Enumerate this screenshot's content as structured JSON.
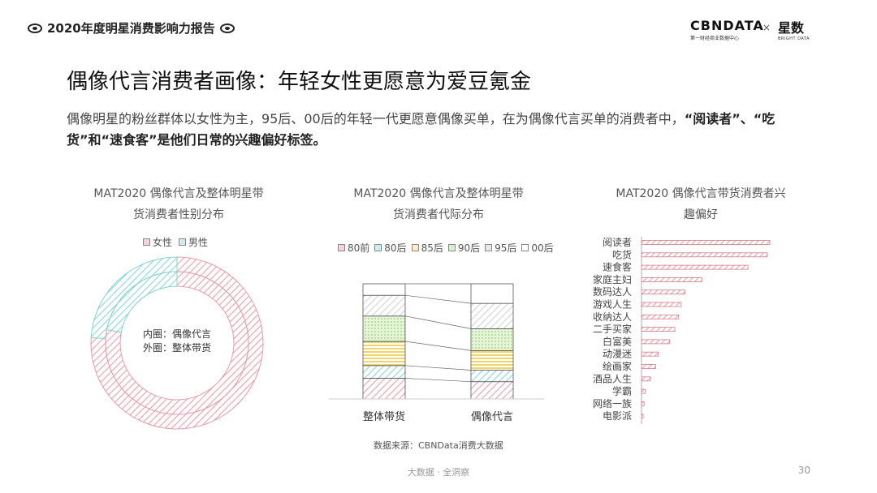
{
  "header": {
    "title": "2020年度明星消费影响力报告"
  },
  "logo": {
    "brand": "CBNDATA",
    "brand_sub": "第一财经商业数据中心",
    "times": "×",
    "partner": "星数",
    "partner_sub": "BRIGHT DATA"
  },
  "title": "偶像代言消费者画像：年轻女性更愿意为爱豆氪金",
  "subtitle": {
    "text": "偶像明星的粉丝群体以女性为主，95后、00后的年轻一代更愿意偶像买单，在为偶像代言买单的消费者中，",
    "bold": "“阅读者”、“吃货”和“速食客”是他们日常的兴趣偏好标签。"
  },
  "colors": {
    "female": "#e89aa5",
    "male": "#7fd3d3",
    "c80前": "#e89aa5",
    "c80后": "#7fd3d3",
    "c85后": "#f2d36b",
    "c90后": "#a8d98a",
    "c95后": "#c8c8c8",
    "c00后": "#ffffff",
    "bar": "#e89aa5"
  },
  "chart_data": [
    {
      "type": "pie",
      "title_line1": "MAT2020 偶像代言及整体明星带",
      "title_line2": "货消费者性别分布",
      "legend": [
        "女性",
        "男性"
      ],
      "center_line1": "内圈：偶像代言",
      "center_line2": "外圈：整体带货",
      "inner": [
        {
          "label": "女性",
          "value": 78
        },
        {
          "label": "男性",
          "value": 22
        }
      ],
      "outer": [
        {
          "label": "女性",
          "value": 76
        },
        {
          "label": "男性",
          "value": 24
        }
      ]
    },
    {
      "type": "bar",
      "stacked": true,
      "title_line1": "MAT2020 偶像代言及整体明星带",
      "title_line2": "货消费者代际分布",
      "categories": [
        "整体带货",
        "偶像代言"
      ],
      "series": [
        {
          "name": "80前",
          "values": [
            18,
            15
          ]
        },
        {
          "name": "80后",
          "values": [
            11,
            10
          ]
        },
        {
          "name": "85后",
          "values": [
            21,
            17
          ]
        },
        {
          "name": "90后",
          "values": [
            22,
            19
          ]
        },
        {
          "name": "95后",
          "values": [
            18,
            22
          ]
        },
        {
          "name": "00后",
          "values": [
            10,
            17
          ]
        }
      ]
    },
    {
      "type": "bar",
      "orientation": "horizontal",
      "title_line1": "MAT2020 偶像代言带货消费者兴",
      "title_line2": "趣偏好",
      "categories": [
        "阅读者",
        "吃货",
        "速食客",
        "家庭主妇",
        "数码达人",
        "游戏人生",
        "收纳达人",
        "二手买家",
        "白富美",
        "动漫迷",
        "绘画家",
        "酒品人生",
        "学霸",
        "网络一族",
        "电影派"
      ],
      "values": [
        100,
        98,
        83,
        47,
        34,
        31,
        29,
        26,
        22,
        13,
        11,
        7,
        3,
        2,
        1
      ]
    }
  ],
  "source": "数据来源：CBNData消费大数据",
  "footer": "大数据 · 全洞察",
  "page_number": "30"
}
